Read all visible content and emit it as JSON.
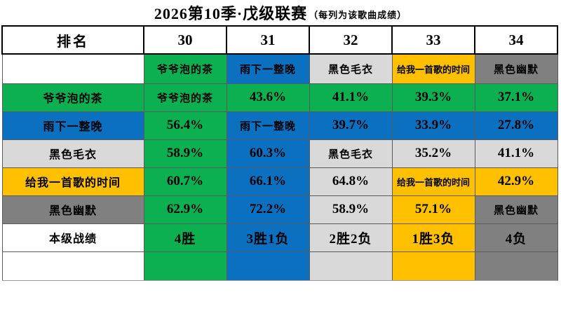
{
  "title": {
    "main": "2026第10季·戊级联赛",
    "note": "（每列为该歌曲成绩）"
  },
  "palette": {
    "green": "#0db050",
    "blue": "#0b70c0",
    "silver": "#d9d9d9",
    "gold": "#ffc000",
    "gray": "#808080",
    "white": "#ffffff"
  },
  "table": {
    "corner": "排名",
    "ranks": [
      "30",
      "31",
      "32",
      "33",
      "34"
    ],
    "rows": [
      {
        "label": "",
        "label_bg": "#ffffff",
        "cells": [
          {
            "text": "爷爷泡的茶",
            "bg": "#0db050"
          },
          {
            "text": "雨下一整晚",
            "bg": "#0b70c0"
          },
          {
            "text": "黑色毛衣",
            "bg": "#d9d9d9"
          },
          {
            "text": "给我一首歌的时间",
            "bg": "#ffc000"
          },
          {
            "text": "黑色幽默",
            "bg": "#808080"
          }
        ]
      },
      {
        "label": "爷爷泡的茶",
        "label_bg": "#0db050",
        "cells": [
          {
            "text": "爷爷泡的茶",
            "bg": "#0db050"
          },
          {
            "text": "43.6%",
            "bg": "#0db050"
          },
          {
            "text": "41.1%",
            "bg": "#0db050"
          },
          {
            "text": "39.3%",
            "bg": "#0db050"
          },
          {
            "text": "37.1%",
            "bg": "#0db050"
          }
        ]
      },
      {
        "label": "雨下一整晚",
        "label_bg": "#0b70c0",
        "cells": [
          {
            "text": "56.4%",
            "bg": "#0db050"
          },
          {
            "text": "雨下一整晚",
            "bg": "#0b70c0"
          },
          {
            "text": "39.7%",
            "bg": "#0b70c0"
          },
          {
            "text": "33.9%",
            "bg": "#0b70c0"
          },
          {
            "text": "27.8%",
            "bg": "#0b70c0"
          }
        ]
      },
      {
        "label": "黑色毛衣",
        "label_bg": "#d9d9d9",
        "cells": [
          {
            "text": "58.9%",
            "bg": "#0db050"
          },
          {
            "text": "60.3%",
            "bg": "#0b70c0"
          },
          {
            "text": "黑色毛衣",
            "bg": "#d9d9d9"
          },
          {
            "text": "35.2%",
            "bg": "#d9d9d9"
          },
          {
            "text": "41.1%",
            "bg": "#d9d9d9"
          }
        ]
      },
      {
        "label": "给我一首歌的时间",
        "label_bg": "#ffc000",
        "cells": [
          {
            "text": "60.7%",
            "bg": "#0db050"
          },
          {
            "text": "66.1%",
            "bg": "#0b70c0"
          },
          {
            "text": "64.8%",
            "bg": "#d9d9d9"
          },
          {
            "text": "给我一首歌的时间",
            "bg": "#ffc000"
          },
          {
            "text": "42.9%",
            "bg": "#ffc000"
          }
        ]
      },
      {
        "label": "黑色幽默",
        "label_bg": "#808080",
        "cells": [
          {
            "text": "62.9%",
            "bg": "#0db050"
          },
          {
            "text": "72.2%",
            "bg": "#0b70c0"
          },
          {
            "text": "58.9%",
            "bg": "#d9d9d9"
          },
          {
            "text": "57.1%",
            "bg": "#ffc000"
          },
          {
            "text": "黑色幽默",
            "bg": "#808080"
          }
        ]
      },
      {
        "label": "本级战绩",
        "label_bg": "#ffffff",
        "cells": [
          {
            "text": "4胜",
            "bg": "#0db050"
          },
          {
            "text": "3胜1负",
            "bg": "#0b70c0"
          },
          {
            "text": "2胜2负",
            "bg": "#d9d9d9"
          },
          {
            "text": "1胜3负",
            "bg": "#ffc000"
          },
          {
            "text": "4负",
            "bg": "#808080"
          }
        ]
      },
      {
        "label": "",
        "label_bg": "#ffffff",
        "cells": [
          {
            "text": "",
            "bg": "#0db050"
          },
          {
            "text": "",
            "bg": "#0b70c0"
          },
          {
            "text": "",
            "bg": "#d9d9d9"
          },
          {
            "text": "",
            "bg": "#ffc000"
          },
          {
            "text": "",
            "bg": "#808080"
          }
        ]
      }
    ]
  },
  "chart_data": {
    "type": "table",
    "title": "2026第10季·戊级联赛",
    "subtitle": "每列为该歌曲成绩",
    "columns": [
      "排名",
      "30",
      "31",
      "32",
      "33",
      "34"
    ],
    "rank_songs": {
      "30": "爷爷泡的茶",
      "31": "雨下一整晚",
      "32": "黑色毛衣",
      "33": "给我一首歌的时间",
      "34": "黑色幽默"
    },
    "pairwise_percent": [
      {
        "row_song": "爷爷泡的茶",
        "vs_30": null,
        "vs_31": 43.6,
        "vs_32": 41.1,
        "vs_33": 39.3,
        "vs_34": 37.1
      },
      {
        "row_song": "雨下一整晚",
        "vs_30": 56.4,
        "vs_31": null,
        "vs_32": 39.7,
        "vs_33": 33.9,
        "vs_34": 27.8
      },
      {
        "row_song": "黑色毛衣",
        "vs_30": 58.9,
        "vs_31": 60.3,
        "vs_32": null,
        "vs_33": 35.2,
        "vs_34": 41.1
      },
      {
        "row_song": "给我一首歌的时间",
        "vs_30": 60.7,
        "vs_31": 66.1,
        "vs_32": 64.8,
        "vs_33": null,
        "vs_34": 42.9
      },
      {
        "row_song": "黑色幽默",
        "vs_30": 62.9,
        "vs_31": 72.2,
        "vs_32": 58.9,
        "vs_33": 57.1,
        "vs_34": null
      }
    ],
    "records_row_label": "本级战绩",
    "records": {
      "30": "4胜",
      "31": "3胜1负",
      "32": "2胜2负",
      "33": "1胜3负",
      "34": "4负"
    },
    "song_colors": {
      "爷爷泡的茶": "#0db050",
      "雨下一整晚": "#0b70c0",
      "黑色毛衣": "#d9d9d9",
      "给我一首歌的时间": "#ffc000",
      "黑色幽默": "#808080"
    },
    "color_rule": "cell background uses the winning song's color"
  }
}
